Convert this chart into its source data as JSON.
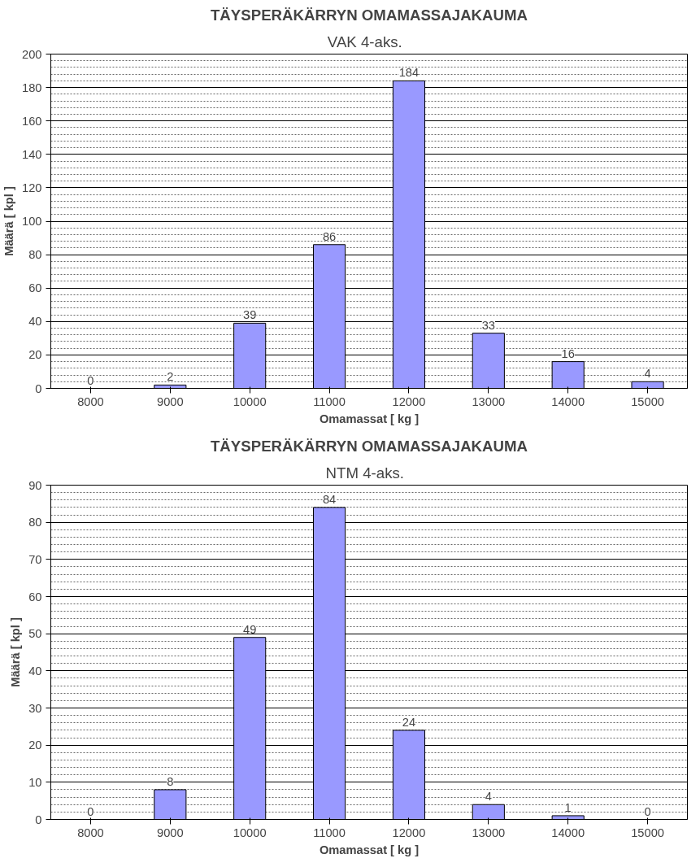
{
  "chart_data": [
    {
      "type": "bar",
      "title": "TÄYSPERÄKÄRRYN OMAMASSAJAKAUMA",
      "subtitle": "VAK   4-aks.",
      "xlabel": "Omamassat [ kg ]",
      "ylabel": "Määrä [ kpl ]",
      "categories": [
        "8000",
        "9000",
        "10000",
        "11000",
        "12000",
        "13000",
        "14000",
        "15000"
      ],
      "values": [
        0,
        2,
        39,
        86,
        184,
        33,
        16,
        4
      ],
      "color": "#9999ff",
      "ylim": [
        0,
        200
      ],
      "yticks": [
        0,
        20,
        40,
        60,
        80,
        100,
        120,
        140,
        160,
        180,
        200
      ],
      "grid": "y",
      "data_labels": true
    },
    {
      "type": "bar",
      "title": "TÄYSPERÄKÄRRYN OMAMASSAJAKAUMA",
      "subtitle": "NTM   4-aks.",
      "xlabel": "Omamassat [ kg ]",
      "ylabel": "Määrä [ kpl ]",
      "categories": [
        "8000",
        "9000",
        "10000",
        "11000",
        "12000",
        "13000",
        "14000",
        "15000"
      ],
      "values": [
        0,
        8,
        49,
        84,
        24,
        4,
        1,
        0
      ],
      "color": "#9999ff",
      "ylim": [
        0,
        90
      ],
      "yticks": [
        0,
        10,
        20,
        30,
        40,
        50,
        60,
        70,
        80,
        90
      ],
      "grid": "y",
      "data_labels": true
    }
  ]
}
